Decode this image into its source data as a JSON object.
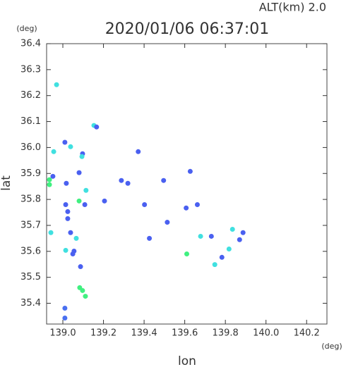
{
  "chart_data": {
    "type": "scatter",
    "title": "2020/01/06 06:37:01",
    "subtitle": "ALT(km)  2.0",
    "x_label": "lon",
    "y_label": "lat",
    "x_unit": "(deg)",
    "y_unit": "(deg)",
    "xlim": [
      138.92,
      140.3
    ],
    "ylim": [
      35.32,
      36.4
    ],
    "xticks": [
      {
        "value": 139,
        "label": "139.0"
      },
      139.2,
      139.4,
      139.6,
      139.8,
      {
        "value": 140,
        "label": "140.0"
      },
      140.2
    ],
    "yticks": [
      35.4,
      35.5,
      35.6,
      35.7,
      35.8,
      35.9,
      {
        "value": 36,
        "label": "36.0"
      },
      36.1,
      36.2,
      36.3,
      36.4
    ],
    "x": [
      138.969,
      139.01,
      139.01,
      139.083,
      139.097,
      139.111,
      139.087,
      139.049,
      139.055,
      139.014,
      138.941,
      139.066,
      139.038,
      139.024,
      139.014,
      139.024,
      139.08,
      139.114,
      139.017,
      138.934,
      138.934,
      138.951,
      139.08,
      139.097,
      139.094,
      139.038,
      138.955,
      139.01,
      139.153,
      139.166,
      139.371,
      139.288,
      139.32,
      139.496,
      139.627,
      139.607,
      139.662,
      139.426,
      139.61,
      139.678,
      139.731,
      139.748,
      139.783,
      139.835,
      139.887,
      139.87,
      139.818,
      139.514,
      139.402,
      139.205,
      139.108
    ],
    "y": [
      36.242,
      35.343,
      35.381,
      35.46,
      35.449,
      35.427,
      35.541,
      35.59,
      35.601,
      35.604,
      35.672,
      35.65,
      35.672,
      35.726,
      35.78,
      35.753,
      35.794,
      35.835,
      35.862,
      35.876,
      35.857,
      35.889,
      35.903,
      35.976,
      35.965,
      36.003,
      35.984,
      36.02,
      36.085,
      36.079,
      35.984,
      35.873,
      35.862,
      35.873,
      35.908,
      35.767,
      35.78,
      35.65,
      35.59,
      35.658,
      35.658,
      35.549,
      35.577,
      35.685,
      35.672,
      35.645,
      35.609,
      35.712,
      35.78,
      35.794,
      35.78
    ],
    "colors": [
      "#40e0e0",
      "#4a70f0",
      "#4a70f0",
      "#40f080",
      "#40f080",
      "#40f080",
      "#4a60f0",
      "#4a60f0",
      "#4a60f0",
      "#40e0e0",
      "#40e0e0",
      "#40e0e0",
      "#4a60f0",
      "#4a60f0",
      "#4a60f0",
      "#4a60f0",
      "#40f080",
      "#40e0e0",
      "#4a60f0",
      "#40f080",
      "#40f080",
      "#4a60f0",
      "#4a60f0",
      "#4a60f0",
      "#40e0e0",
      "#40e0e0",
      "#40e0e0",
      "#4a60f0",
      "#40e0e0",
      "#4a60f0",
      "#4a60f0",
      "#4a60f0",
      "#4a60f0",
      "#4a60f0",
      "#4a60f0",
      "#4a60f0",
      "#4a60f0",
      "#4a60f0",
      "#40f080",
      "#40e0e0",
      "#4a60f0",
      "#40e0e0",
      "#4a60f0",
      "#40e0e0",
      "#4a60f0",
      "#4a60f0",
      "#40e0e0",
      "#4a60f0",
      "#4a60f0",
      "#4a60f0",
      "#4a60f0"
    ]
  }
}
